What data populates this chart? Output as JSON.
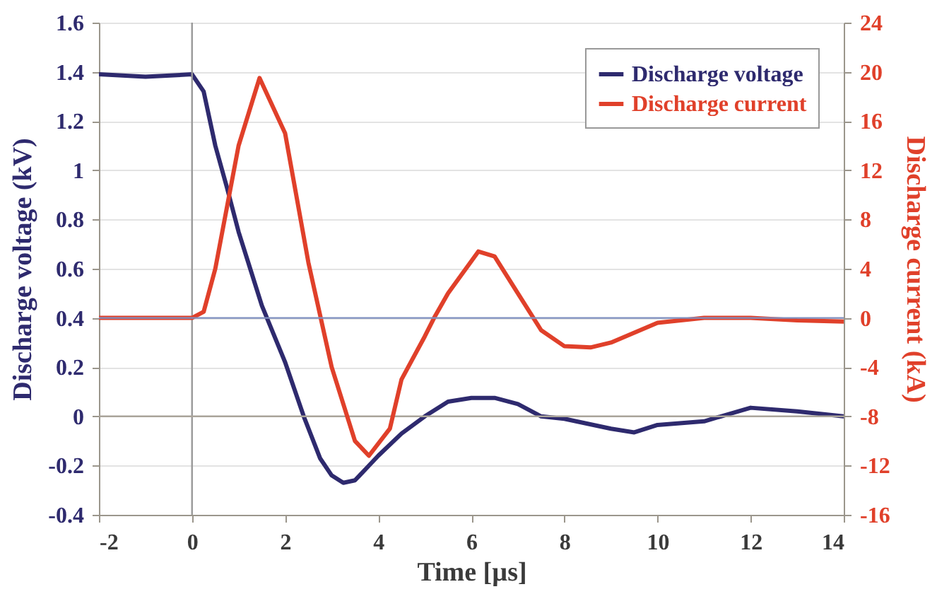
{
  "chart_data": {
    "type": "line",
    "xlabel": "Time [µs]",
    "ylabel": "Discharge voltage (kV)",
    "y2label": "Discharge current (kA)",
    "xlim": [
      -2,
      14
    ],
    "xticks": [
      -2,
      0,
      2,
      4,
      6,
      8,
      10,
      12,
      14
    ],
    "ylim": [
      -0.4,
      1.6
    ],
    "yticks": [
      -0.4,
      -0.2,
      0,
      0.2,
      0.4,
      0.6,
      0.8,
      1,
      1.2,
      1.4,
      1.6
    ],
    "y2lim": [
      -16,
      24
    ],
    "y2ticks": [
      -16,
      -12,
      -8,
      -4,
      0,
      4,
      8,
      12,
      16,
      20,
      24
    ],
    "grid": "y",
    "legend": "top right",
    "ref_lines": [
      {
        "axis": "x",
        "value": 0,
        "color": "#999999"
      },
      {
        "axis": "y",
        "value": 0,
        "color": "#aaa49a"
      },
      {
        "axis": "y2",
        "value": 0,
        "color": "#7f8fbf"
      }
    ],
    "series": [
      {
        "name": "Discharge voltage",
        "color": "#2e2a6e",
        "x": [
          -2,
          -1,
          0,
          0.25,
          0.5,
          0.75,
          1,
          1.25,
          1.5,
          2,
          2.4,
          2.75,
          3,
          3.25,
          3.5,
          4,
          4.5,
          5,
          5.5,
          6,
          6.5,
          7,
          7.5,
          8,
          9,
          9.5,
          10,
          11,
          12,
          13,
          14
        ],
        "values": [
          1.39,
          1.38,
          1.39,
          1.32,
          1.1,
          0.93,
          0.75,
          0.6,
          0.45,
          0.22,
          0,
          -0.17,
          -0.24,
          -0.27,
          -0.26,
          -0.16,
          -0.07,
          0,
          0.06,
          0.075,
          0.075,
          0.05,
          0,
          -0.01,
          -0.05,
          -0.065,
          -0.035,
          -0.02,
          0.035,
          0.02,
          0
        ]
      },
      {
        "name": "Discharge current",
        "color": "#e0402a",
        "axis": "y2",
        "x": [
          -2,
          -1,
          0,
          0.25,
          0.5,
          1,
          1.45,
          2,
          2.5,
          3,
          3.5,
          3.8,
          4.25,
          4.5,
          5,
          5.2,
          5.5,
          6.15,
          6.5,
          7,
          7.5,
          8,
          8.56,
          9,
          10,
          11,
          12,
          13,
          14
        ],
        "values": [
          0,
          0,
          0,
          0.5,
          4,
          14,
          19.5,
          15,
          4.5,
          -4,
          -10,
          -11.2,
          -9,
          -5,
          -1.5,
          0,
          2,
          5.4,
          5,
          2,
          -1,
          -2.3,
          -2.4,
          -2,
          -0.4,
          0,
          0,
          -0.2,
          -0.3
        ]
      }
    ]
  }
}
